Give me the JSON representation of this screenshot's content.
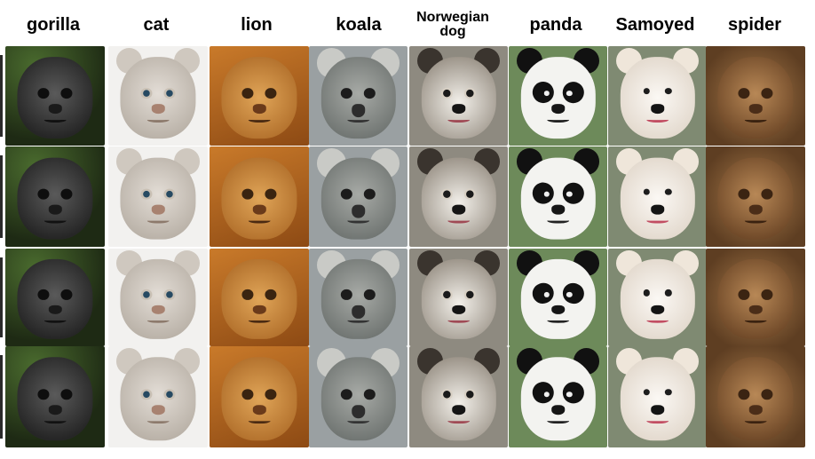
{
  "columns": [
    {
      "id": "gorilla",
      "label": "gorilla"
    },
    {
      "id": "cat",
      "label": "cat"
    },
    {
      "id": "lion",
      "label": "lion"
    },
    {
      "id": "koala",
      "label": "koala"
    },
    {
      "id": "norwegian",
      "label": "Norwegian dog"
    },
    {
      "id": "panda",
      "label": "panda"
    },
    {
      "id": "samoyed",
      "label": "Samoyed"
    },
    {
      "id": "spider",
      "label": "spider"
    }
  ],
  "rows": 4
}
